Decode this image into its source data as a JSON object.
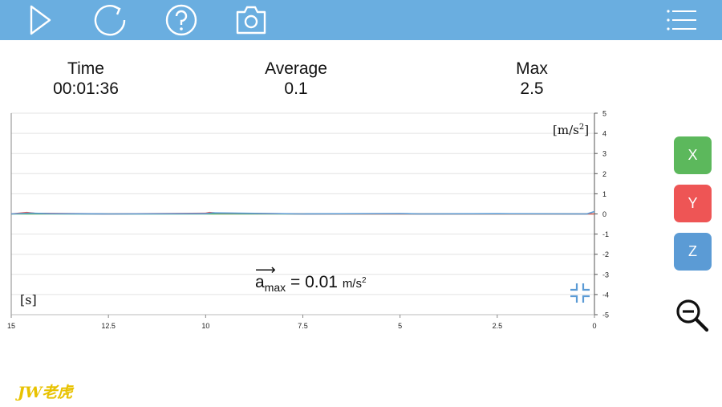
{
  "toolbar": {
    "icons": [
      "play-icon",
      "reload-icon",
      "help-icon",
      "camera-icon",
      "menu-icon"
    ]
  },
  "stats": {
    "time": {
      "label": "Time",
      "value": "00:01:36"
    },
    "average": {
      "label": "Average",
      "value": "0.1"
    },
    "max": {
      "label": "Max",
      "value": "2.5"
    }
  },
  "chart_data": {
    "type": "line",
    "xlabel": "[s]",
    "ylabel": "[m/s²]",
    "x_ticks": [
      "15",
      "12.5",
      "10",
      "7.5",
      "5",
      "2.5",
      "0"
    ],
    "y_ticks": [
      "5",
      "4",
      "3",
      "2",
      "1",
      "0",
      "-1",
      "-2",
      "-3",
      "-4",
      "-5"
    ],
    "xlim": [
      15,
      0
    ],
    "ylim": [
      -5,
      5
    ],
    "grid": true,
    "series": [
      {
        "color": "#5b9bd5",
        "x": [
          15,
          14.5,
          14,
          12.5,
          10,
          9.8,
          7.5,
          5,
          4.5,
          2.5,
          0.2,
          0
        ],
        "y": [
          0,
          0.04,
          0.01,
          0,
          0.01,
          0.05,
          0,
          0.02,
          0,
          0.01,
          0,
          0.12
        ]
      },
      {
        "color": "#e05a5a",
        "x": [
          15,
          14.6,
          14.4,
          12.5,
          10,
          9.9,
          9.7,
          7.5,
          5,
          2.5,
          0
        ],
        "y": [
          0,
          0.07,
          0.03,
          0,
          0.03,
          0.07,
          0.04,
          0,
          0,
          0,
          0
        ]
      },
      {
        "color": "#4caf50",
        "x": [
          15,
          12.5,
          10,
          7.5,
          5,
          2.5,
          0
        ],
        "y": [
          0,
          0,
          0,
          0,
          0,
          0,
          0
        ]
      }
    ]
  },
  "amax": {
    "symbol": "a",
    "sub": "max",
    "equals": "= 0.01",
    "unit": "m/s",
    "unit_sup": "2"
  },
  "unit_label": {
    "base": "[m/s",
    "sup": "2",
    "close": "]"
  },
  "channels": {
    "x": "X",
    "y": "Y",
    "z": "Z"
  },
  "colors": {
    "toolbar": "#6aaee0",
    "x": "#5cb85c",
    "y": "#ee5555",
    "z": "#5b9bd5"
  },
  "watermark": "JW老虎"
}
